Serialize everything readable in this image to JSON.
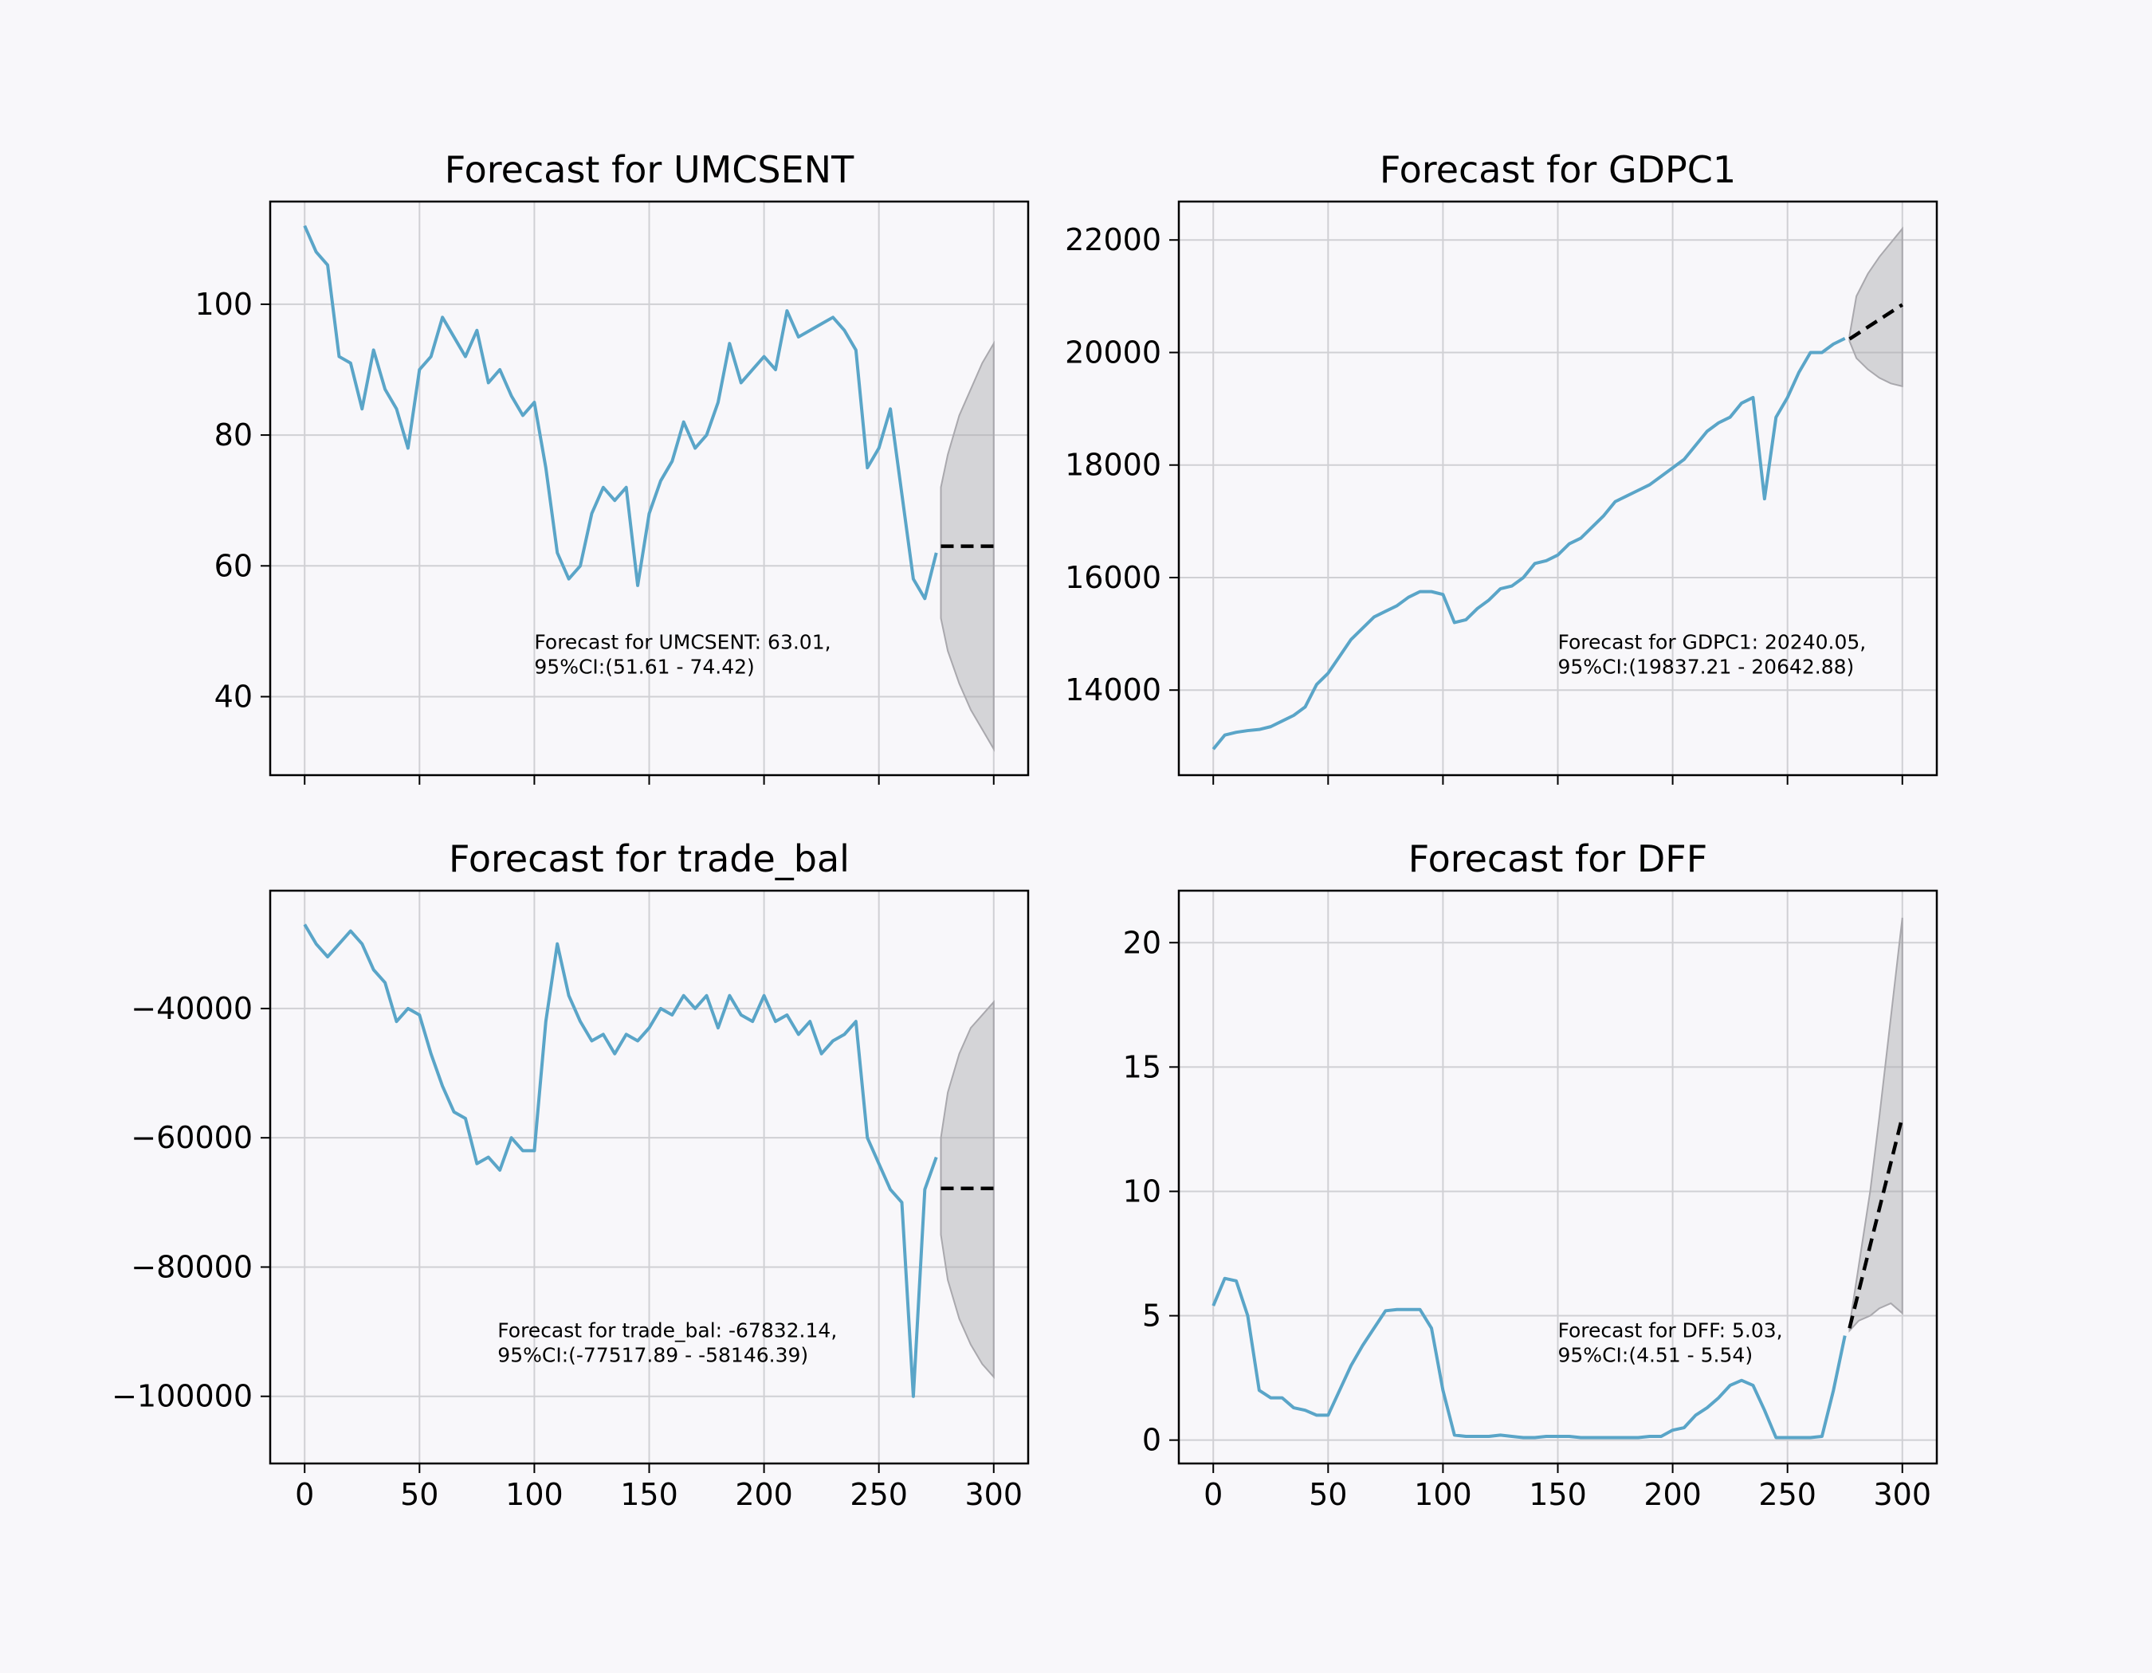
{
  "chart_data": [
    {
      "type": "line",
      "title": "Forecast for UMCSENT",
      "color": "#5aa5c8",
      "ci_color": "#a9a8ad",
      "forecast_color": "#000000",
      "grid": true,
      "show_xtick_labels": false,
      "xlim": [
        -15,
        315
      ],
      "xticks": [
        0,
        50,
        100,
        150,
        200,
        250,
        300
      ],
      "ylim": [
        28,
        115.7
      ],
      "yticks": [
        40,
        60,
        80,
        100
      ],
      "x": [
        0,
        5,
        10,
        15,
        20,
        25,
        30,
        35,
        40,
        45,
        50,
        55,
        60,
        65,
        70,
        75,
        80,
        85,
        90,
        95,
        100,
        105,
        110,
        115,
        120,
        125,
        130,
        135,
        140,
        145,
        150,
        155,
        160,
        165,
        170,
        175,
        180,
        185,
        190,
        195,
        200,
        205,
        210,
        215,
        220,
        225,
        230,
        235,
        240,
        245,
        250,
        255,
        260,
        265,
        270,
        275
      ],
      "values": [
        112,
        108,
        106,
        92,
        91,
        84,
        93,
        87,
        84,
        78,
        90,
        92,
        98,
        95,
        92,
        96,
        88,
        90,
        86,
        83,
        85,
        75,
        62,
        58,
        60,
        68,
        72,
        70,
        72,
        57,
        68,
        73,
        76,
        82,
        78,
        80,
        85,
        94,
        88,
        90,
        92,
        90,
        99,
        95,
        96,
        97,
        98,
        96,
        93,
        75,
        78,
        84,
        71,
        58,
        55,
        62
      ],
      "forecast": {
        "x": [
          277,
          300
        ],
        "values": [
          63,
          63
        ]
      },
      "ci": {
        "x": [
          277,
          280,
          285,
          290,
          295,
          300
        ],
        "upper": [
          72,
          77,
          83,
          87,
          91,
          94
        ],
        "lower": [
          52,
          47,
          42,
          38,
          35,
          32
        ]
      },
      "annotation": [
        "Forecast for UMCSENT: 63.01,",
        "95%CI:(51.61 - 74.42)"
      ]
    },
    {
      "type": "line",
      "title": "Forecast for GDPC1",
      "color": "#5aa5c8",
      "ci_color": "#a9a8ad",
      "forecast_color": "#000000",
      "grid": true,
      "show_xtick_labels": false,
      "xlim": [
        -15,
        315
      ],
      "xticks": [
        0,
        50,
        100,
        150,
        200,
        250,
        300
      ],
      "ylim": [
        12488,
        22683
      ],
      "yticks": [
        14000,
        16000,
        18000,
        20000,
        22000
      ],
      "x": [
        0,
        5,
        10,
        15,
        20,
        25,
        30,
        35,
        40,
        45,
        50,
        55,
        60,
        65,
        70,
        75,
        80,
        85,
        90,
        95,
        100,
        105,
        110,
        115,
        120,
        125,
        130,
        135,
        140,
        145,
        150,
        155,
        160,
        165,
        170,
        175,
        180,
        185,
        190,
        195,
        200,
        205,
        210,
        215,
        220,
        225,
        230,
        235,
        240,
        245,
        250,
        255,
        260,
        265,
        270,
        275
      ],
      "values": [
        12950,
        13200,
        13250,
        13280,
        13300,
        13350,
        13450,
        13550,
        13700,
        14100,
        14300,
        14600,
        14900,
        15100,
        15300,
        15400,
        15500,
        15650,
        15750,
        15750,
        15700,
        15200,
        15250,
        15450,
        15600,
        15800,
        15850,
        16000,
        16250,
        16300,
        16400,
        16600,
        16700,
        16900,
        17100,
        17350,
        17450,
        17550,
        17650,
        17800,
        17950,
        18100,
        18350,
        18600,
        18750,
        18850,
        19100,
        19200,
        17400,
        18850,
        19200,
        19650,
        20000,
        20000,
        20150,
        20250
      ],
      "forecast": {
        "x": [
          277,
          300
        ],
        "values": [
          20240,
          20850
        ]
      },
      "ci": {
        "x": [
          277,
          280,
          285,
          290,
          295,
          300
        ],
        "upper": [
          20300,
          21000,
          21400,
          21700,
          21950,
          22200
        ],
        "lower": [
          20200,
          19900,
          19700,
          19550,
          19450,
          19400
        ]
      },
      "annotation": [
        "Forecast for GDPC1: 20240.05,",
        "95%CI:(19837.21 - 20642.88)"
      ]
    },
    {
      "type": "line",
      "title": "Forecast for trade_bal",
      "color": "#5aa5c8",
      "ci_color": "#a9a8ad",
      "forecast_color": "#000000",
      "grid": true,
      "show_xtick_labels": true,
      "xlim": [
        -15,
        315
      ],
      "xticks": [
        0,
        50,
        100,
        150,
        200,
        250,
        300
      ],
      "ylim": [
        -110388,
        -21768
      ],
      "yticks": [
        {
          "value": -100000,
          "label": "−100000"
        },
        {
          "value": -80000,
          "label": "−80000"
        },
        {
          "value": -60000,
          "label": "−60000"
        },
        {
          "value": -40000,
          "label": "−40000"
        }
      ],
      "x": [
        0,
        5,
        10,
        15,
        20,
        25,
        30,
        35,
        40,
        45,
        50,
        55,
        60,
        65,
        70,
        75,
        80,
        85,
        90,
        95,
        100,
        105,
        110,
        115,
        120,
        125,
        130,
        135,
        140,
        145,
        150,
        155,
        160,
        165,
        170,
        175,
        180,
        185,
        190,
        195,
        200,
        205,
        210,
        215,
        220,
        225,
        230,
        235,
        240,
        245,
        250,
        255,
        260,
        265,
        270,
        275
      ],
      "values": [
        -27000,
        -30000,
        -32000,
        -30000,
        -28000,
        -30000,
        -34000,
        -36000,
        -42000,
        -40000,
        -41000,
        -47000,
        -52000,
        -56000,
        -57000,
        -64000,
        -63000,
        -65000,
        -60000,
        -62000,
        -62000,
        -42000,
        -30000,
        -38000,
        -42000,
        -45000,
        -44000,
        -47000,
        -44000,
        -45000,
        -43000,
        -40000,
        -41000,
        -38000,
        -40000,
        -38000,
        -43000,
        -38000,
        -41000,
        -42000,
        -38000,
        -42000,
        -41000,
        -44000,
        -42000,
        -47000,
        -45000,
        -44000,
        -42000,
        -60000,
        -64000,
        -68000,
        -70000,
        -100000,
        -68000,
        -63000
      ],
      "forecast": {
        "x": [
          277,
          300
        ],
        "values": [
          -67832,
          -67832
        ]
      },
      "ci": {
        "x": [
          277,
          280,
          285,
          290,
          295,
          300
        ],
        "upper": [
          -60000,
          -53000,
          -47000,
          -43000,
          -41000,
          -39000
        ],
        "lower": [
          -75000,
          -82000,
          -88000,
          -92000,
          -95000,
          -97000
        ]
      },
      "annotation": [
        "Forecast for trade_bal: -67832.14,",
        "95%CI:(-77517.89 - -58146.39)"
      ]
    },
    {
      "type": "line",
      "title": "Forecast for DFF",
      "color": "#5aa5c8",
      "ci_color": "#a9a8ad",
      "forecast_color": "#000000",
      "grid": true,
      "show_xtick_labels": true,
      "xlim": [
        -15,
        315
      ],
      "xticks": [
        0,
        50,
        100,
        150,
        200,
        250,
        300
      ],
      "ylim": [
        -0.94,
        22.09
      ],
      "yticks": [
        0,
        5,
        10,
        15,
        20
      ],
      "x": [
        0,
        5,
        10,
        15,
        20,
        25,
        30,
        35,
        40,
        45,
        50,
        55,
        60,
        65,
        70,
        75,
        80,
        85,
        90,
        95,
        100,
        105,
        110,
        115,
        120,
        125,
        130,
        135,
        140,
        145,
        150,
        155,
        160,
        165,
        170,
        175,
        180,
        185,
        190,
        195,
        200,
        205,
        210,
        215,
        220,
        225,
        230,
        235,
        240,
        245,
        250,
        255,
        260,
        265,
        270,
        275
      ],
      "values": [
        5.4,
        6.5,
        6.4,
        5,
        2,
        1.7,
        1.7,
        1.3,
        1.2,
        1,
        1,
        2,
        3,
        3.8,
        4.5,
        5.2,
        5.25,
        5.25,
        5.25,
        4.5,
        2,
        0.2,
        0.15,
        0.15,
        0.15,
        0.2,
        0.15,
        0.1,
        0.1,
        0.15,
        0.15,
        0.15,
        0.1,
        0.1,
        0.1,
        0.1,
        0.1,
        0.1,
        0.15,
        0.15,
        0.4,
        0.5,
        1,
        1.3,
        1.7,
        2.2,
        2.4,
        2.2,
        1.2,
        0.1,
        0.1,
        0.1,
        0.1,
        0.15,
        2,
        4.2
      ],
      "forecast": {
        "x": [
          277,
          300
        ],
        "values": [
          4.5,
          13
        ]
      },
      "ci": {
        "x": [
          277,
          281,
          286,
          290,
          295,
          300
        ],
        "upper": [
          4.6,
          7,
          10,
          13,
          17,
          21
        ],
        "lower": [
          4.4,
          4.8,
          5,
          5.3,
          5.5,
          5.1
        ]
      },
      "annotation": [
        "Forecast for DFF: 5.03,",
        "95%CI:(4.51 - 5.54)"
      ]
    }
  ]
}
